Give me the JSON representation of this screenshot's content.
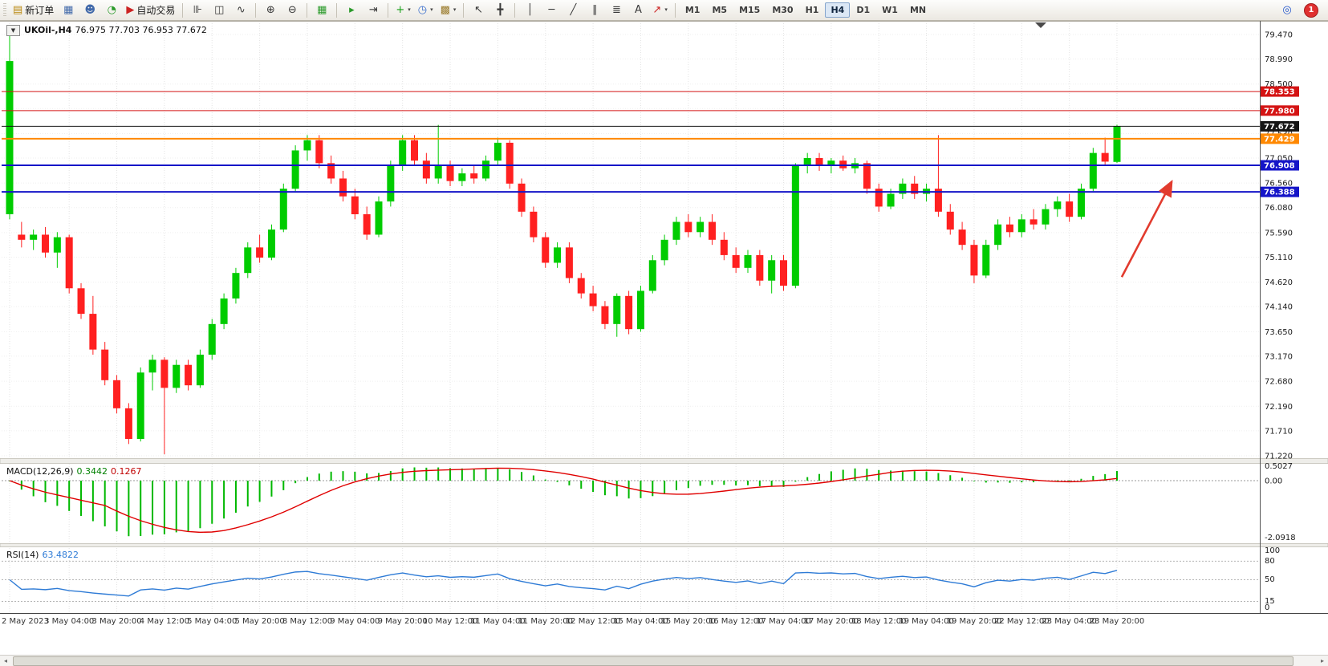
{
  "toolbar": {
    "left_buttons": [
      {
        "name": "new-order-button",
        "icon": "new-order-icon",
        "label": "新订单"
      },
      {
        "name": "charts-button",
        "icon": "chart-page-icon"
      },
      {
        "name": "profile-button",
        "icon": "profile-icon"
      },
      {
        "name": "terminal-button",
        "icon": "terminal-icon"
      },
      {
        "name": "auto-trading-button",
        "icon": "auto-trading-icon",
        "label": "自动交易"
      }
    ],
    "tool_groups": [
      {
        "buttons": [
          {
            "name": "bars-chart-button",
            "icon": "bars-chart-icon"
          },
          {
            "name": "candlestick-chart-button",
            "icon": "candlestick-icon"
          },
          {
            "name": "line-chart-button",
            "icon": "line-chart-icon"
          }
        ]
      },
      {
        "buttons": [
          {
            "name": "zoom-in-button",
            "icon": "zoom-in-icon"
          },
          {
            "name": "zoom-out-button",
            "icon": "zoom-out-icon"
          }
        ]
      },
      {
        "buttons": [
          {
            "name": "tile-windows-button",
            "icon": "tile-windows-icon"
          }
        ]
      },
      {
        "buttons": [
          {
            "name": "auto-scroll-button",
            "icon": "auto-scroll-icon"
          },
          {
            "name": "chart-shift-button",
            "icon": "chart-shift-icon"
          }
        ]
      },
      {
        "buttons": [
          {
            "name": "indicators-button",
            "icon": "indicators-icon",
            "caret": true
          },
          {
            "name": "periods-button",
            "icon": "periods-icon",
            "caret": true
          },
          {
            "name": "templates-button",
            "icon": "templates-icon",
            "caret": true
          }
        ]
      },
      {
        "buttons": [
          {
            "name": "cursor-button",
            "icon": "cursor-icon"
          },
          {
            "name": "crosshair-button",
            "icon": "crosshair-icon"
          }
        ]
      },
      {
        "buttons": [
          {
            "name": "vertical-line-button",
            "icon": "vertical-line-icon"
          },
          {
            "name": "horizontal-line-button",
            "icon": "horizontal-line-icon"
          },
          {
            "name": "trendline-button",
            "icon": "trendline-icon"
          },
          {
            "name": "channel-button",
            "icon": "channel-icon"
          },
          {
            "name": "fibonacci-button",
            "icon": "fibonacci-icon"
          },
          {
            "name": "text-button",
            "icon": "text-icon"
          },
          {
            "name": "arrows-button",
            "icon": "arrows-icon",
            "caret": true
          }
        ]
      }
    ],
    "timeframes": [
      "M1",
      "M5",
      "M15",
      "M30",
      "H1",
      "H4",
      "D1",
      "W1",
      "MN"
    ],
    "active_timeframe": "H4",
    "notification_count": "1"
  },
  "chart": {
    "symbol_period": "UKOil-,H4",
    "ohlc_text": "76.975 77.703 76.953 77.672"
  },
  "macd_panel": {
    "title": "MACD(12,26,9)",
    "main_value": "0.3442",
    "signal_value": "0.1267",
    "scale_labels": [
      "0.5027",
      "0.00",
      "-2.0918"
    ]
  },
  "rsi_panel": {
    "title": "RSI(14)",
    "value": "63.4822",
    "levels": [
      80,
      50,
      15
    ],
    "scale_labels": [
      "100",
      "80",
      "50",
      "15",
      "0"
    ]
  },
  "chart_data": {
    "type": "candlestick",
    "symbol": "UKOil-",
    "timeframe": "H4",
    "price_range": [
      71.22,
      79.47
    ],
    "price_axis_ticks": [
      "79.470",
      "78.990",
      "78.500",
      "78.020",
      "77.530",
      "77.050",
      "76.560",
      "76.080",
      "75.590",
      "75.110",
      "74.620",
      "74.140",
      "73.650",
      "73.170",
      "72.680",
      "72.190",
      "71.710",
      "71.220"
    ],
    "levels": [
      {
        "price": 78.353,
        "label": "78.353",
        "color": "#d41414",
        "width": 1
      },
      {
        "price": 77.98,
        "label": "77.980",
        "color": "#d41414",
        "width": 1
      },
      {
        "price": 77.672,
        "label": "77.672",
        "color": "#151515",
        "width": 1
      },
      {
        "price": 77.429,
        "label": "77.429",
        "color": "#ff8800",
        "width": 2
      },
      {
        "price": 76.908,
        "label": "76.908",
        "color": "#1515c8",
        "width": 2
      },
      {
        "price": 76.388,
        "label": "76.388",
        "color": "#1515c8",
        "width": 2
      }
    ],
    "time_labels": [
      {
        "bar": 0,
        "label": "2 May 2023"
      },
      {
        "bar": 5,
        "label": "3 May 04:00"
      },
      {
        "bar": 9,
        "label": "3 May 20:00"
      },
      {
        "bar": 13,
        "label": "4 May 12:00"
      },
      {
        "bar": 17,
        "label": "5 May 04:00"
      },
      {
        "bar": 21,
        "label": "5 May 20:00"
      },
      {
        "bar": 25,
        "label": "8 May 12:00"
      },
      {
        "bar": 29,
        "label": "9 May 04:00"
      },
      {
        "bar": 33,
        "label": "9 May 20:00"
      },
      {
        "bar": 37,
        "label": "10 May 12:00"
      },
      {
        "bar": 41,
        "label": "11 May 04:00"
      },
      {
        "bar": 45,
        "label": "11 May 20:00"
      },
      {
        "bar": 49,
        "label": "12 May 12:00"
      },
      {
        "bar": 53,
        "label": "15 May 04:00"
      },
      {
        "bar": 57,
        "label": "15 May 20:00"
      },
      {
        "bar": 61,
        "label": "16 May 12:00"
      },
      {
        "bar": 65,
        "label": "17 May 04:00"
      },
      {
        "bar": 69,
        "label": "17 May 20:00"
      },
      {
        "bar": 73,
        "label": "18 May 12:00"
      },
      {
        "bar": 77,
        "label": "19 May 04:00"
      },
      {
        "bar": 81,
        "label": "19 May 20:00"
      },
      {
        "bar": 85,
        "label": "22 May 12:00"
      },
      {
        "bar": 89,
        "label": "23 May 04:00"
      },
      {
        "bar": 93,
        "label": "23 May 20:00"
      }
    ],
    "candles": [
      [
        75.95,
        79.45,
        75.85,
        78.95
      ],
      [
        75.55,
        75.8,
        75.3,
        75.45
      ],
      [
        75.45,
        75.65,
        75.25,
        75.55
      ],
      [
        75.55,
        75.7,
        75.1,
        75.2
      ],
      [
        75.2,
        75.6,
        74.9,
        75.5
      ],
      [
        75.5,
        75.55,
        74.4,
        74.5
      ],
      [
        74.5,
        74.6,
        73.9,
        74.0
      ],
      [
        74.0,
        74.35,
        73.2,
        73.3
      ],
      [
        73.3,
        73.45,
        72.6,
        72.7
      ],
      [
        72.7,
        72.8,
        72.05,
        72.15
      ],
      [
        72.15,
        72.25,
        71.45,
        71.55
      ],
      [
        71.55,
        72.95,
        71.5,
        72.85
      ],
      [
        72.85,
        73.2,
        72.5,
        73.1
      ],
      [
        73.1,
        73.15,
        71.25,
        72.55
      ],
      [
        72.55,
        73.1,
        72.45,
        73.0
      ],
      [
        73.0,
        73.1,
        72.5,
        72.6
      ],
      [
        72.6,
        73.3,
        72.55,
        73.2
      ],
      [
        73.2,
        73.9,
        73.1,
        73.8
      ],
      [
        73.8,
        74.4,
        73.7,
        74.3
      ],
      [
        74.3,
        74.9,
        74.2,
        74.8
      ],
      [
        74.8,
        75.4,
        74.7,
        75.3
      ],
      [
        75.3,
        75.55,
        75.0,
        75.1
      ],
      [
        75.1,
        75.75,
        75.05,
        75.65
      ],
      [
        75.65,
        76.55,
        75.6,
        76.45
      ],
      [
        76.45,
        77.3,
        76.4,
        77.2
      ],
      [
        77.2,
        77.5,
        77.0,
        77.4
      ],
      [
        77.4,
        77.5,
        76.85,
        76.95
      ],
      [
        76.95,
        77.1,
        76.55,
        76.65
      ],
      [
        76.65,
        76.8,
        76.2,
        76.3
      ],
      [
        76.3,
        76.45,
        75.85,
        75.95
      ],
      [
        75.95,
        76.1,
        75.45,
        75.55
      ],
      [
        75.55,
        76.3,
        75.5,
        76.2
      ],
      [
        76.2,
        77.0,
        76.1,
        76.9
      ],
      [
        76.9,
        77.5,
        76.8,
        77.4
      ],
      [
        77.4,
        77.5,
        76.9,
        77.0
      ],
      [
        77.0,
        77.15,
        76.55,
        76.65
      ],
      [
        76.65,
        77.7,
        76.55,
        76.9
      ],
      [
        76.9,
        77.0,
        76.5,
        76.6
      ],
      [
        76.6,
        76.85,
        76.5,
        76.75
      ],
      [
        76.75,
        76.9,
        76.55,
        76.65
      ],
      [
        76.65,
        77.1,
        76.6,
        77.0
      ],
      [
        77.0,
        77.45,
        76.9,
        77.35
      ],
      [
        77.35,
        77.4,
        76.45,
        76.55
      ],
      [
        76.55,
        76.65,
        75.9,
        76.0
      ],
      [
        76.0,
        76.1,
        75.4,
        75.5
      ],
      [
        75.5,
        75.6,
        74.9,
        75.0
      ],
      [
        75.0,
        75.4,
        74.9,
        75.3
      ],
      [
        75.3,
        75.4,
        74.6,
        74.7
      ],
      [
        74.7,
        74.8,
        74.3,
        74.4
      ],
      [
        74.4,
        74.55,
        74.05,
        74.15
      ],
      [
        74.15,
        74.25,
        73.7,
        73.8
      ],
      [
        73.8,
        74.4,
        73.55,
        74.35
      ],
      [
        74.35,
        74.45,
        73.6,
        73.7
      ],
      [
        73.7,
        74.55,
        73.65,
        74.45
      ],
      [
        74.45,
        75.15,
        74.4,
        75.05
      ],
      [
        75.05,
        75.55,
        74.95,
        75.45
      ],
      [
        75.45,
        75.9,
        75.35,
        75.8
      ],
      [
        75.8,
        75.95,
        75.5,
        75.6
      ],
      [
        75.6,
        75.9,
        75.5,
        75.8
      ],
      [
        75.8,
        75.95,
        75.35,
        75.45
      ],
      [
        75.45,
        75.6,
        75.05,
        75.15
      ],
      [
        75.15,
        75.3,
        74.8,
        74.9
      ],
      [
        74.9,
        75.25,
        74.8,
        75.15
      ],
      [
        75.15,
        75.25,
        74.55,
        74.65
      ],
      [
        74.65,
        75.15,
        74.4,
        75.05
      ],
      [
        75.05,
        75.15,
        74.45,
        74.55
      ],
      [
        74.55,
        76.95,
        74.5,
        76.9
      ],
      [
        76.9,
        77.15,
        76.75,
        77.05
      ],
      [
        77.05,
        77.15,
        76.8,
        76.9
      ],
      [
        76.9,
        77.05,
        76.75,
        77.0
      ],
      [
        77.0,
        77.1,
        76.8,
        76.85
      ],
      [
        76.85,
        77.05,
        76.75,
        76.95
      ],
      [
        76.95,
        77.0,
        76.35,
        76.45
      ],
      [
        76.45,
        76.55,
        76.0,
        76.1
      ],
      [
        76.1,
        76.45,
        76.05,
        76.35
      ],
      [
        76.35,
        76.65,
        76.25,
        76.55
      ],
      [
        76.55,
        76.7,
        76.25,
        76.35
      ],
      [
        76.35,
        76.55,
        76.2,
        76.45
      ],
      [
        76.45,
        77.5,
        75.9,
        76.0
      ],
      [
        76.0,
        76.15,
        75.55,
        75.65
      ],
      [
        75.65,
        75.8,
        75.25,
        75.35
      ],
      [
        75.35,
        75.45,
        74.6,
        74.75
      ],
      [
        74.75,
        75.45,
        74.7,
        75.35
      ],
      [
        75.35,
        75.85,
        75.25,
        75.75
      ],
      [
        75.75,
        75.9,
        75.5,
        75.6
      ],
      [
        75.6,
        75.95,
        75.5,
        75.85
      ],
      [
        75.85,
        76.05,
        75.65,
        75.75
      ],
      [
        75.75,
        76.15,
        75.65,
        76.05
      ],
      [
        76.05,
        76.3,
        75.9,
        76.2
      ],
      [
        76.2,
        76.35,
        75.8,
        75.9
      ],
      [
        75.9,
        76.55,
        75.85,
        76.45
      ],
      [
        76.45,
        77.25,
        76.4,
        77.15
      ],
      [
        77.15,
        77.45,
        76.9,
        76.98
      ],
      [
        76.975,
        77.703,
        76.953,
        77.672
      ]
    ],
    "indicators": {
      "macd": {
        "params": [
          12,
          26,
          9
        ],
        "main": 0.3442,
        "signal": 0.1267,
        "range": [
          -2.0918,
          0.5027
        ]
      },
      "rsi": {
        "params": [
          14
        ],
        "value": 63.4822,
        "levels": [
          80,
          50,
          15
        ],
        "range": [
          0,
          100
        ]
      }
    },
    "annotations": [
      {
        "type": "arrow",
        "from": {
          "bar": 93.4,
          "price": 74.72
        },
        "to": {
          "bar": 97.6,
          "price": 76.59
        }
      }
    ],
    "colors": {
      "bull": "#00cc00",
      "bear": "#ff2020",
      "background": "#ffffff",
      "grid": "#e3e3e3",
      "macd_signal": "#e00000",
      "macd_histogram": "#00b800",
      "rsi_line": "#2e7bd6",
      "arrow": "#e23b2e"
    }
  }
}
